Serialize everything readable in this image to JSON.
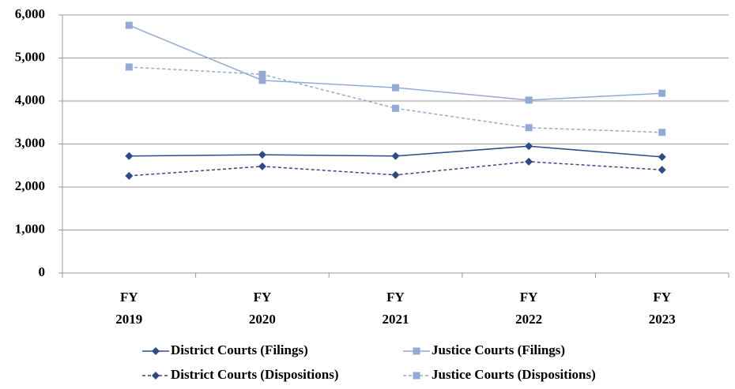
{
  "chart_data": {
    "type": "line",
    "categories": [
      "FY 2019",
      "FY 2020",
      "FY 2021",
      "FY 2022",
      "FY 2023"
    ],
    "series": [
      {
        "name": "District Courts (Filings)",
        "color": "#2e4a87",
        "marker": "diamond",
        "line_style": "solid",
        "values": [
          2720,
          2750,
          2720,
          2950,
          2700
        ]
      },
      {
        "name": "Justice Courts (Filings)",
        "color": "#93a9d6",
        "marker": "square",
        "line_style": "solid",
        "values": [
          5760,
          4480,
          4310,
          4020,
          4180
        ]
      },
      {
        "name": "District Courts (Dispositions)",
        "color": "#2e4a87",
        "marker": "diamond",
        "line_style": "dashed",
        "values": [
          2260,
          2480,
          2280,
          2590,
          2400
        ]
      },
      {
        "name": "Justice Courts (Dispositions)",
        "color": "#93a9d6",
        "marker": "square",
        "line_style": "dashed",
        "values": [
          4790,
          4620,
          3830,
          3380,
          3270
        ]
      }
    ],
    "ylim": [
      0,
      6000
    ],
    "yticks": [
      0,
      {
        "value": 1000,
        "label": "1,000"
      },
      {
        "value": 2000,
        "label": "2,000"
      },
      {
        "value": 3000,
        "label": "3,000"
      },
      {
        "value": 4000,
        "label": "4,000"
      },
      {
        "value": 5000,
        "label": "5,000"
      },
      {
        "value": 6000,
        "label": "6,000"
      }
    ],
    "grid": true,
    "legend": "bottom"
  }
}
